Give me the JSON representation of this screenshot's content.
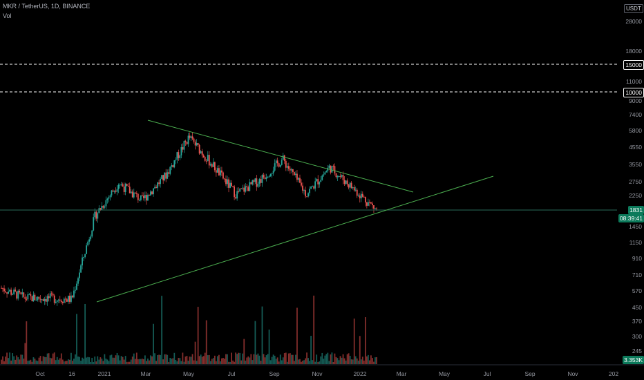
{
  "symbol_title": "MKR / TetherUS, 1D, BINANCE",
  "vol_label": "Vol",
  "currency_badge": "USDT",
  "price_ticks": [
    "28000",
    "18000",
    "11000",
    "9000",
    "7400",
    "5800",
    "4550",
    "3550",
    "2750",
    "2250",
    "1450",
    "1150",
    "910",
    "710",
    "570",
    "450",
    "370",
    "300",
    "245"
  ],
  "level_tags": [
    "15000",
    "10000"
  ],
  "last_price": "1831",
  "countdown": "08:39:41",
  "volume_value": "3.353K",
  "time_ticks": [
    "Oct",
    "16",
    "2021",
    "Mar",
    "May",
    "Jul",
    "Sep",
    "Nov",
    "2022",
    "Mar",
    "May",
    "Jul",
    "Sep",
    "Nov",
    "202"
  ],
  "colors": {
    "up": "#26a69a",
    "down": "#ef5350",
    "trendline": "#4caf50",
    "background": "#000000"
  },
  "chart_data": {
    "type": "candlestick",
    "y_scale": "log",
    "ylim": [
      190,
      40000
    ],
    "horizontal_levels": [
      15000,
      10000
    ],
    "last_price": 1831,
    "series": [
      {
        "x": "Sep",
        "close": 600
      },
      {
        "x": "Oct",
        "close": 520
      },
      {
        "x": "Nov",
        "close": 520
      },
      {
        "x": "Dec",
        "close": 510
      },
      {
        "x": "Jan 2021",
        "close": 1700
      },
      {
        "x": "Feb",
        "close": 2700
      },
      {
        "x": "Mar",
        "close": 2100
      },
      {
        "x": "Apr",
        "close": 3000
      },
      {
        "x": "May",
        "close": 5200
      },
      {
        "x": "Jun",
        "close": 3500
      },
      {
        "x": "Jul",
        "close": 2300
      },
      {
        "x": "Aug",
        "close": 2800
      },
      {
        "x": "Sep",
        "close": 3800
      },
      {
        "x": "Oct",
        "close": 2300
      },
      {
        "x": "Nov",
        "close": 3400
      },
      {
        "x": "Dec",
        "close": 2500
      },
      {
        "x": "Jan 2022",
        "close": 1831
      }
    ]
  }
}
